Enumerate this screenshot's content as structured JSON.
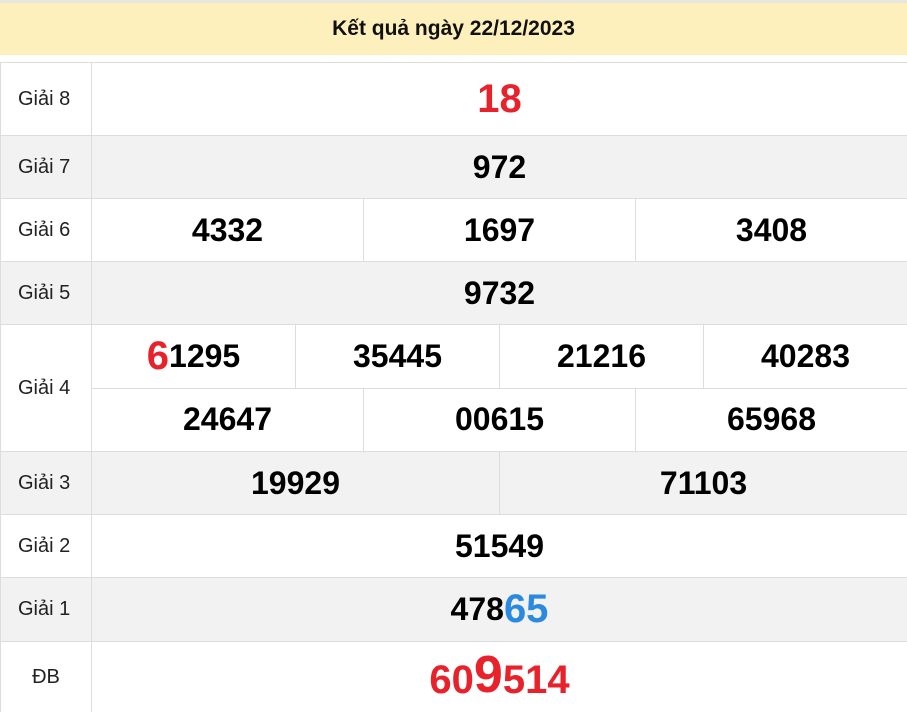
{
  "header": {
    "title": "Kết quả ngày 22/12/2023"
  },
  "colors": {
    "header_bg": "#fdf0bd",
    "highlight_red": "#e8222a",
    "highlight_blue": "#2b8ae0",
    "alt_row": "#f2f2f2"
  },
  "prizes": {
    "g8": {
      "label": "Giải 8",
      "numbers": [
        "18"
      ]
    },
    "g7": {
      "label": "Giải 7",
      "numbers": [
        "972"
      ]
    },
    "g6": {
      "label": "Giải 6",
      "numbers": [
        "4332",
        "1697",
        "3408"
      ]
    },
    "g5": {
      "label": "Giải 5",
      "numbers": [
        "9732"
      ]
    },
    "g4": {
      "label": "Giải 4",
      "numbers": [
        {
          "head": "6",
          "tail": "1295"
        },
        "35445",
        "21216",
        "40283",
        "24647",
        "00615",
        "65968"
      ]
    },
    "g3": {
      "label": "Giải 3",
      "numbers": [
        "19929",
        "71103"
      ]
    },
    "g2": {
      "label": "Giải 2",
      "numbers": [
        "51549"
      ]
    },
    "g1": {
      "label": "Giải 1",
      "numbers": [
        {
          "head": "478",
          "tail": "65"
        }
      ]
    },
    "db": {
      "label": "ĐB",
      "numbers": [
        {
          "a": "60",
          "b": "9",
          "c": "514"
        }
      ]
    }
  }
}
